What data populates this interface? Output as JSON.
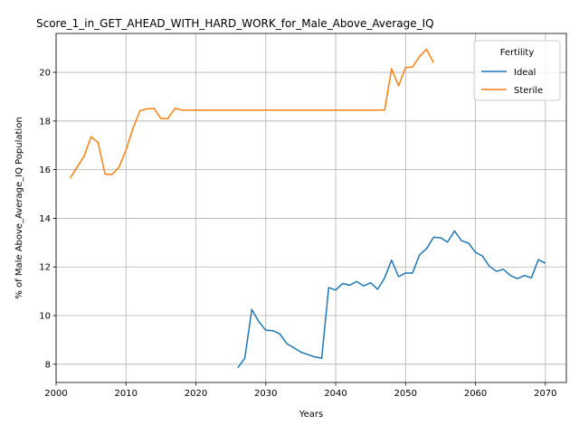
{
  "chart_data": {
    "type": "line",
    "title": "Score_1_in_GET_AHEAD_WITH_HARD_WORK_for_Male_Above_Average_IQ",
    "xlabel": "Years",
    "ylabel": "% of Male Above_Average_IQ Population",
    "xlim": [
      2000,
      2073
    ],
    "ylim": [
      7.25,
      21.6
    ],
    "xticks": [
      2000,
      2010,
      2020,
      2030,
      2040,
      2050,
      2060,
      2070
    ],
    "yticks": [
      8,
      10,
      12,
      14,
      16,
      18,
      20
    ],
    "grid": true,
    "legend": {
      "title": "Fertility",
      "position": "top-right"
    },
    "series": [
      {
        "name": "Ideal",
        "color": "#1f77b4",
        "x": [
          2026,
          2027,
          2028,
          2029,
          2030,
          2031,
          2032,
          2033,
          2034,
          2035,
          2036,
          2037,
          2038,
          2039,
          2040,
          2041,
          2042,
          2043,
          2044,
          2045,
          2046,
          2047,
          2048,
          2049,
          2050,
          2051,
          2052,
          2053,
          2054,
          2055,
          2056,
          2057,
          2058,
          2059,
          2060,
          2061,
          2062,
          2063,
          2064,
          2065,
          2066,
          2067,
          2068,
          2069,
          2070
        ],
        "y": [
          7.85,
          8.25,
          10.25,
          9.75,
          9.4,
          9.38,
          9.25,
          8.85,
          8.68,
          8.5,
          8.4,
          8.3,
          8.25,
          11.15,
          11.05,
          11.32,
          11.25,
          11.4,
          11.22,
          11.35,
          11.08,
          11.55,
          12.28,
          11.6,
          11.75,
          11.75,
          12.5,
          12.75,
          13.22,
          13.2,
          13.02,
          13.48,
          13.08,
          12.98,
          12.6,
          12.45,
          12.02,
          11.82,
          11.9,
          11.65,
          11.52,
          11.65,
          11.55,
          12.3,
          12.15
        ]
      },
      {
        "name": "Sterile",
        "color": "#ff7f0e",
        "x": [
          2002,
          2003,
          2004,
          2005,
          2006,
          2007,
          2008,
          2009,
          2010,
          2011,
          2012,
          2013,
          2014,
          2015,
          2016,
          2017,
          2018,
          2019,
          2020,
          2021,
          2022,
          2023,
          2024,
          2025,
          2026,
          2027,
          2028,
          2029,
          2030,
          2031,
          2032,
          2033,
          2034,
          2035,
          2036,
          2037,
          2038,
          2039,
          2040,
          2041,
          2042,
          2043,
          2044,
          2045,
          2046,
          2047,
          2048,
          2049,
          2050,
          2051,
          2052,
          2053,
          2054
        ],
        "y": [
          15.65,
          16.1,
          16.55,
          17.35,
          17.12,
          15.82,
          15.8,
          16.1,
          16.8,
          17.7,
          18.42,
          18.5,
          18.52,
          18.1,
          18.1,
          18.52,
          18.45,
          18.45,
          18.45,
          18.45,
          18.45,
          18.45,
          18.45,
          18.45,
          18.45,
          18.45,
          18.45,
          18.45,
          18.45,
          18.45,
          18.45,
          18.45,
          18.45,
          18.45,
          18.45,
          18.45,
          18.45,
          18.45,
          18.45,
          18.45,
          18.45,
          18.45,
          18.45,
          18.45,
          18.45,
          18.45,
          20.15,
          19.45,
          20.2,
          20.22,
          20.65,
          20.95,
          20.4
        ]
      }
    ]
  }
}
